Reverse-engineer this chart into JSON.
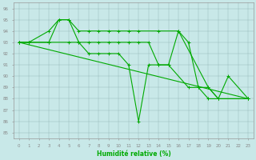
{
  "bg_color": "#c8e8e8",
  "line_color": "#00aa00",
  "xlabel": "Humidité relative (%)",
  "ylim": [
    84.5,
    96.5
  ],
  "xlim": [
    -0.5,
    23.5
  ],
  "yticks": [
    85,
    86,
    87,
    88,
    89,
    90,
    91,
    92,
    93,
    94,
    95,
    96
  ],
  "xticks": [
    0,
    1,
    2,
    3,
    4,
    5,
    6,
    7,
    8,
    9,
    10,
    11,
    12,
    13,
    14,
    15,
    16,
    17,
    18,
    19,
    20,
    21,
    22,
    23
  ],
  "s1x": [
    0,
    1,
    3,
    4,
    5,
    6,
    7,
    8,
    9,
    10,
    11,
    12,
    14,
    16,
    19,
    20,
    21,
    23
  ],
  "s1y": [
    93,
    93,
    94,
    95,
    95,
    94,
    94,
    94,
    94,
    94,
    94,
    94,
    94,
    94,
    89,
    88,
    90,
    88
  ],
  "s2x": [
    0,
    1,
    3,
    4,
    5,
    6,
    7,
    8,
    9,
    10,
    11,
    12,
    13,
    14,
    15,
    17,
    18,
    19,
    20,
    23
  ],
  "s2y": [
    93,
    93,
    93,
    95,
    95,
    93,
    93,
    93,
    93,
    93,
    93,
    93,
    93,
    91,
    91,
    89,
    89,
    88,
    88,
    88
  ],
  "s3x": [
    0,
    1,
    3,
    5,
    6,
    7,
    8,
    9,
    10,
    11,
    12,
    13,
    14,
    15,
    16,
    17,
    18,
    19,
    20,
    23
  ],
  "s3y": [
    93,
    93,
    93,
    93,
    93,
    92,
    92,
    92,
    92,
    91,
    86,
    91,
    91,
    91,
    94,
    93,
    89,
    89,
    88,
    88
  ],
  "s4x": [
    0,
    23
  ],
  "s4y": [
    93,
    88
  ]
}
